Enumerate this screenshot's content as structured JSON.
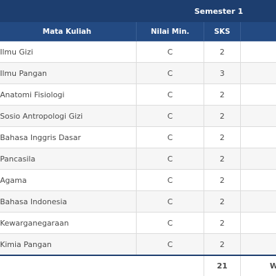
{
  "header": {
    "semester": "Semester 1"
  },
  "columns": [
    "Mata Kuliah",
    "Nilai Min.",
    "SKS"
  ],
  "rows": [
    [
      "Ilmu Gizi",
      "C",
      "2"
    ],
    [
      "Ilmu Pangan",
      "C",
      "3"
    ],
    [
      "Anatomi Fisiologi",
      "C",
      "2"
    ],
    [
      "Sosio Antropologi Gizi",
      "C",
      "2"
    ],
    [
      "Bahasa Inggris Dasar",
      "C",
      "2"
    ],
    [
      "Pancasila",
      "C",
      "2"
    ],
    [
      "Agama",
      "C",
      "2"
    ],
    [
      "Bahasa Indonesia",
      "C",
      "2"
    ],
    [
      "Kewarganegaraan",
      "C",
      "2"
    ],
    [
      "Kimia Pangan",
      "C",
      "2"
    ]
  ],
  "footer": {
    "total": "21",
    "label": "W"
  }
}
